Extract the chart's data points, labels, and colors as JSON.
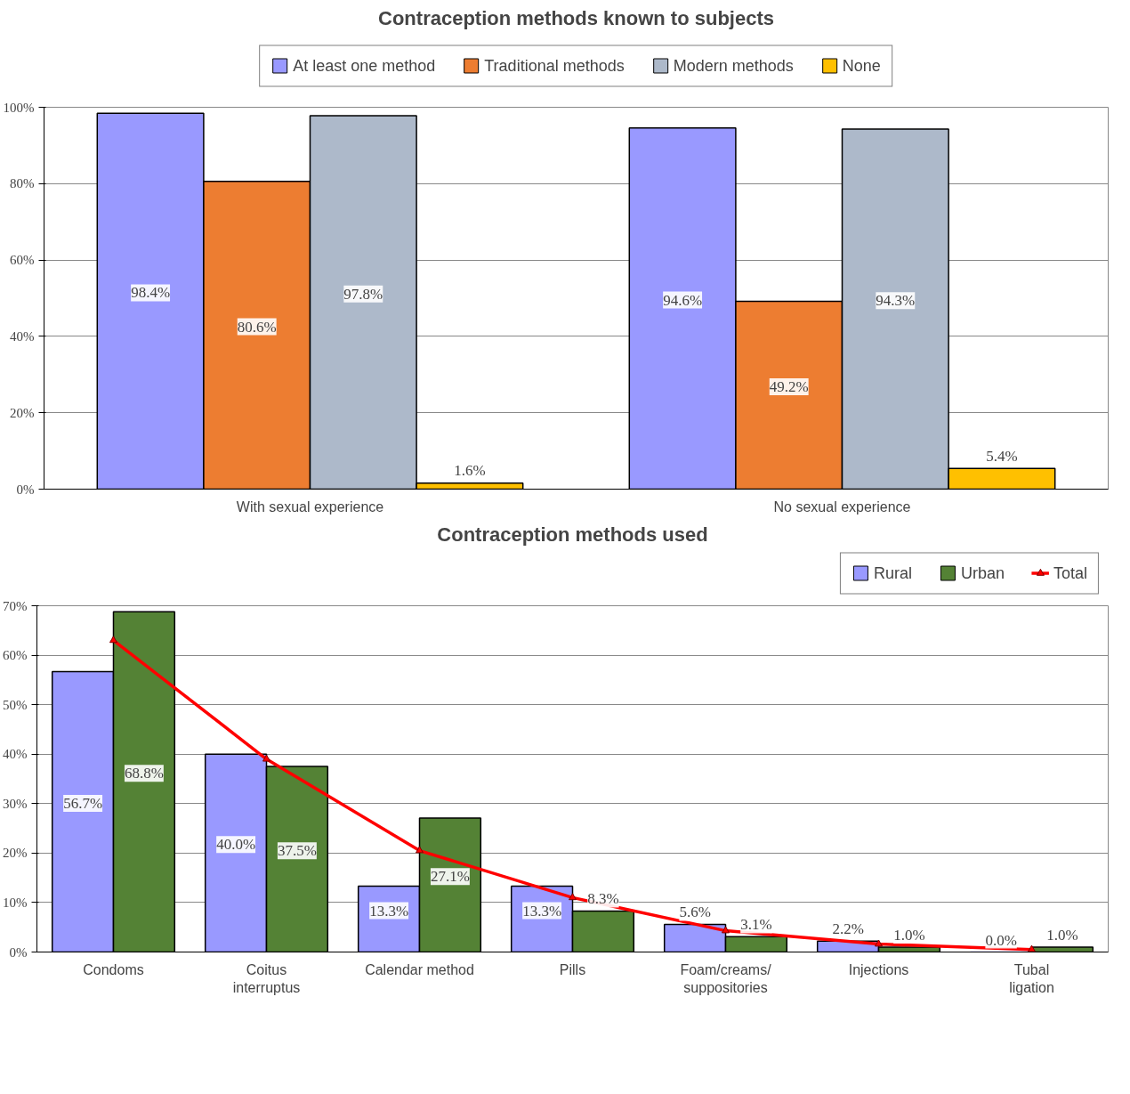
{
  "chart_data": [
    {
      "type": "bar",
      "title": "Contraception methods known to subjects",
      "categories": [
        "With sexual experience",
        "No sexual experience"
      ],
      "series": [
        {
          "name": "At least one method",
          "color": "#9999ff",
          "values": [
            98.4,
            94.6
          ],
          "value_labels": [
            "98.4%",
            "94.6%"
          ]
        },
        {
          "name": "Traditional methods",
          "color": "#ed7d31",
          "values": [
            80.6,
            49.2
          ],
          "value_labels": [
            "80.6%",
            "49.2%"
          ]
        },
        {
          "name": "Modern methods",
          "color": "#adb9ca",
          "values": [
            97.8,
            94.3
          ],
          "value_labels": [
            "97.8%",
            "94.3%"
          ]
        },
        {
          "name": "None",
          "color": "#ffc000",
          "values": [
            1.6,
            5.4
          ],
          "value_labels": [
            "1.6%",
            "5.4%"
          ]
        }
      ],
      "ylim": [
        0,
        100
      ],
      "yticks": [
        {
          "value": 0,
          "label": "0%"
        },
        {
          "value": 20,
          "label": "20%"
        },
        {
          "value": 40,
          "label": "40%"
        },
        {
          "value": 60,
          "label": "60%"
        },
        {
          "value": 80,
          "label": "80%"
        },
        {
          "value": 100,
          "label": "100%"
        }
      ],
      "grid": "y",
      "legend": "top"
    },
    {
      "type": "bar",
      "title": "Contraception methods used",
      "categories": [
        "Condoms",
        "Coitus\ninterruptus",
        "Calendar method",
        "Pills",
        "Foam/creams/\nsuppositories",
        "Injections",
        "Tubal\nligation"
      ],
      "series": [
        {
          "name": "Rural",
          "color": "#9999ff",
          "values": [
            56.7,
            40.0,
            13.3,
            13.3,
            5.6,
            2.2,
            0.0
          ],
          "value_labels": [
            "56.7%",
            "40.0%",
            "13.3%",
            "13.3%",
            "5.6%",
            "2.2%",
            "0.0%"
          ]
        },
        {
          "name": "Urban",
          "color": "#548235",
          "values": [
            68.8,
            37.5,
            27.1,
            8.3,
            3.1,
            1.0,
            1.0
          ],
          "value_labels": [
            "68.8%",
            "37.5%",
            "27.1%",
            "8.3%",
            "3.1%",
            "1.0%",
            "1.0%"
          ]
        },
        {
          "name": "Total",
          "type": "line",
          "color": "#ff0000",
          "marker": "triangle",
          "values": [
            63.0,
            39.0,
            20.5,
            11.0,
            4.3,
            1.6,
            0.5
          ]
        }
      ],
      "ylim": [
        0,
        70
      ],
      "yticks": [
        {
          "value": 0,
          "label": "0%"
        },
        {
          "value": 10,
          "label": "10%"
        },
        {
          "value": 20,
          "label": "20%"
        },
        {
          "value": 30,
          "label": "30%"
        },
        {
          "value": 40,
          "label": "40%"
        },
        {
          "value": 50,
          "label": "50%"
        },
        {
          "value": 60,
          "label": "60%"
        },
        {
          "value": 70,
          "label": "70%"
        }
      ],
      "grid": "y",
      "legend": "top right"
    }
  ]
}
